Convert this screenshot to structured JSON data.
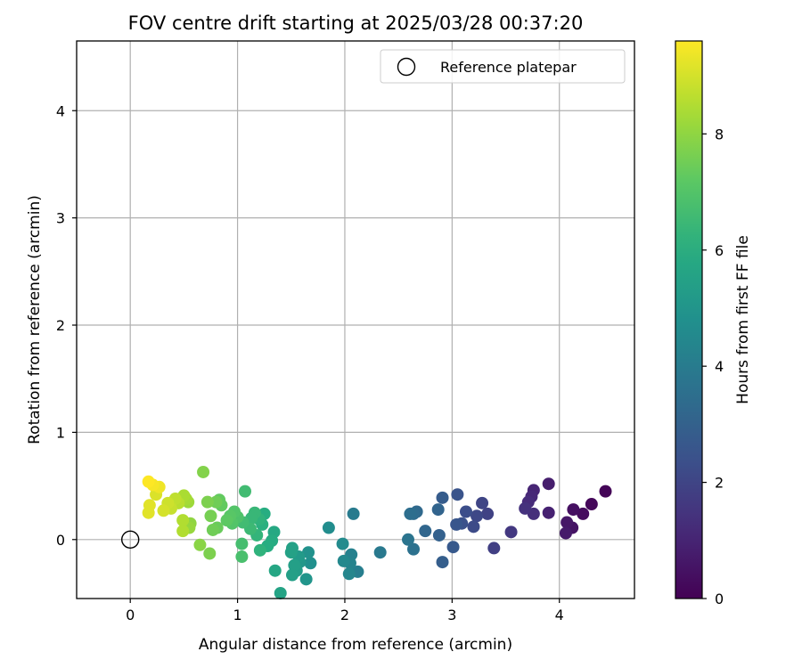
{
  "chart_data": {
    "type": "scatter",
    "title": "FOV centre drift starting at 2025/03/28 00:37:20",
    "xlabel": "Angular distance from reference (arcmin)",
    "ylabel": "Rotation from reference (arcmin)",
    "xlim": [
      -0.5,
      4.7
    ],
    "ylim": [
      -0.55,
      4.65
    ],
    "xticks": [
      0,
      1,
      2,
      3,
      4
    ],
    "yticks": [
      0,
      1,
      2,
      3,
      4
    ],
    "grid": true,
    "legend": {
      "label": "Reference platepar",
      "position": "top-right",
      "marker": "open-circle"
    },
    "reference_point": {
      "x": 0,
      "y": 0
    },
    "colorbar": {
      "label": "Hours from first FF file",
      "colormap": "viridis",
      "range": [
        0,
        9.6
      ],
      "ticks": [
        0,
        2,
        4,
        6,
        8
      ]
    },
    "points": [
      {
        "x": 4.43,
        "y": 0.45,
        "c": 0.1
      },
      {
        "x": 4.3,
        "y": 0.33,
        "c": 0.2
      },
      {
        "x": 4.22,
        "y": 0.24,
        "c": 0.3
      },
      {
        "x": 4.13,
        "y": 0.28,
        "c": 0.4
      },
      {
        "x": 4.12,
        "y": 0.11,
        "c": 0.5
      },
      {
        "x": 4.07,
        "y": 0.16,
        "c": 0.6
      },
      {
        "x": 4.06,
        "y": 0.06,
        "c": 0.7
      },
      {
        "x": 3.9,
        "y": 0.52,
        "c": 0.8
      },
      {
        "x": 3.9,
        "y": 0.25,
        "c": 0.9
      },
      {
        "x": 3.76,
        "y": 0.46,
        "c": 1.0
      },
      {
        "x": 3.74,
        "y": 0.4,
        "c": 1.1
      },
      {
        "x": 3.71,
        "y": 0.35,
        "c": 1.2
      },
      {
        "x": 3.76,
        "y": 0.24,
        "c": 1.3
      },
      {
        "x": 3.68,
        "y": 0.29,
        "c": 1.4
      },
      {
        "x": 3.55,
        "y": 0.07,
        "c": 1.6
      },
      {
        "x": 3.39,
        "y": -0.08,
        "c": 1.8
      },
      {
        "x": 3.33,
        "y": 0.24,
        "c": 1.9
      },
      {
        "x": 3.28,
        "y": 0.34,
        "c": 2.0
      },
      {
        "x": 3.23,
        "y": 0.22,
        "c": 2.1
      },
      {
        "x": 3.2,
        "y": 0.12,
        "c": 2.2
      },
      {
        "x": 3.13,
        "y": 0.26,
        "c": 2.3
      },
      {
        "x": 3.09,
        "y": 0.15,
        "c": 2.4
      },
      {
        "x": 3.05,
        "y": 0.42,
        "c": 2.5
      },
      {
        "x": 3.04,
        "y": 0.14,
        "c": 2.6
      },
      {
        "x": 3.01,
        "y": -0.07,
        "c": 2.7
      },
      {
        "x": 2.91,
        "y": 0.39,
        "c": 2.8
      },
      {
        "x": 2.91,
        "y": -0.21,
        "c": 2.9
      },
      {
        "x": 2.88,
        "y": 0.04,
        "c": 3.0
      },
      {
        "x": 2.87,
        "y": 0.28,
        "c": 3.1
      },
      {
        "x": 2.75,
        "y": 0.08,
        "c": 3.2
      },
      {
        "x": 2.67,
        "y": 0.26,
        "c": 3.3
      },
      {
        "x": 2.64,
        "y": 0.24,
        "c": 3.4
      },
      {
        "x": 2.61,
        "y": 0.24,
        "c": 3.5
      },
      {
        "x": 2.64,
        "y": -0.09,
        "c": 3.6
      },
      {
        "x": 2.59,
        "y": 0.0,
        "c": 3.7
      },
      {
        "x": 2.33,
        "y": -0.12,
        "c": 3.9
      },
      {
        "x": 2.08,
        "y": 0.24,
        "c": 4.0
      },
      {
        "x": 2.12,
        "y": -0.3,
        "c": 4.1
      },
      {
        "x": 2.06,
        "y": -0.14,
        "c": 4.2
      },
      {
        "x": 2.05,
        "y": -0.22,
        "c": 4.3
      },
      {
        "x": 2.04,
        "y": -0.32,
        "c": 4.4
      },
      {
        "x": 1.99,
        "y": -0.2,
        "c": 4.5
      },
      {
        "x": 1.98,
        "y": -0.04,
        "c": 4.6
      },
      {
        "x": 1.85,
        "y": 0.11,
        "c": 4.7
      },
      {
        "x": 1.68,
        "y": -0.22,
        "c": 4.8
      },
      {
        "x": 1.66,
        "y": -0.12,
        "c": 4.9
      },
      {
        "x": 1.64,
        "y": -0.37,
        "c": 5.0
      },
      {
        "x": 1.58,
        "y": -0.21,
        "c": 5.1
      },
      {
        "x": 1.57,
        "y": -0.16,
        "c": 5.2
      },
      {
        "x": 1.55,
        "y": -0.29,
        "c": 5.3
      },
      {
        "x": 1.53,
        "y": -0.24,
        "c": 5.4
      },
      {
        "x": 1.51,
        "y": -0.33,
        "c": 5.4
      },
      {
        "x": 1.51,
        "y": -0.08,
        "c": 5.5
      },
      {
        "x": 1.5,
        "y": -0.12,
        "c": 5.5
      },
      {
        "x": 1.4,
        "y": -0.5,
        "c": 5.6
      },
      {
        "x": 1.35,
        "y": -0.29,
        "c": 5.7
      },
      {
        "x": 1.34,
        "y": 0.07,
        "c": 5.8
      },
      {
        "x": 1.32,
        "y": -0.01,
        "c": 5.9
      },
      {
        "x": 1.28,
        "y": -0.06,
        "c": 6.0
      },
      {
        "x": 1.25,
        "y": 0.24,
        "c": 6.0
      },
      {
        "x": 1.23,
        "y": 0.14,
        "c": 6.1
      },
      {
        "x": 1.21,
        "y": -0.1,
        "c": 6.2
      },
      {
        "x": 1.2,
        "y": 0.19,
        "c": 6.2
      },
      {
        "x": 1.18,
        "y": 0.04,
        "c": 6.3
      },
      {
        "x": 1.16,
        "y": 0.25,
        "c": 6.4
      },
      {
        "x": 1.13,
        "y": 0.2,
        "c": 6.4
      },
      {
        "x": 1.12,
        "y": 0.1,
        "c": 6.5
      },
      {
        "x": 1.07,
        "y": 0.45,
        "c": 6.6
      },
      {
        "x": 1.05,
        "y": 0.16,
        "c": 6.6
      },
      {
        "x": 1.04,
        "y": -0.04,
        "c": 6.7
      },
      {
        "x": 1.04,
        "y": -0.16,
        "c": 6.8
      },
      {
        "x": 1.0,
        "y": 0.21,
        "c": 6.9
      },
      {
        "x": 0.97,
        "y": 0.26,
        "c": 7.0
      },
      {
        "x": 0.95,
        "y": 0.15,
        "c": 7.0
      },
      {
        "x": 0.93,
        "y": 0.22,
        "c": 7.1
      },
      {
        "x": 0.9,
        "y": 0.18,
        "c": 7.2
      },
      {
        "x": 0.85,
        "y": 0.32,
        "c": 7.3
      },
      {
        "x": 0.83,
        "y": 0.37,
        "c": 7.3
      },
      {
        "x": 0.81,
        "y": 0.11,
        "c": 7.4
      },
      {
        "x": 0.8,
        "y": 0.35,
        "c": 7.5
      },
      {
        "x": 0.77,
        "y": 0.09,
        "c": 7.5
      },
      {
        "x": 0.75,
        "y": 0.22,
        "c": 7.6
      },
      {
        "x": 0.74,
        "y": -0.13,
        "c": 7.7
      },
      {
        "x": 0.72,
        "y": 0.35,
        "c": 7.7
      },
      {
        "x": 0.68,
        "y": 0.63,
        "c": 7.8
      },
      {
        "x": 0.65,
        "y": -0.05,
        "c": 7.9
      },
      {
        "x": 0.56,
        "y": 0.15,
        "c": 8.0
      },
      {
        "x": 0.55,
        "y": 0.11,
        "c": 8.1
      },
      {
        "x": 0.54,
        "y": 0.35,
        "c": 8.2
      },
      {
        "x": 0.52,
        "y": 0.38,
        "c": 8.3
      },
      {
        "x": 0.5,
        "y": 0.41,
        "c": 8.4
      },
      {
        "x": 0.49,
        "y": 0.18,
        "c": 8.5
      },
      {
        "x": 0.49,
        "y": 0.08,
        "c": 8.5
      },
      {
        "x": 0.45,
        "y": 0.34,
        "c": 8.6
      },
      {
        "x": 0.42,
        "y": 0.38,
        "c": 8.7
      },
      {
        "x": 0.38,
        "y": 0.29,
        "c": 8.8
      },
      {
        "x": 0.35,
        "y": 0.34,
        "c": 8.9
      },
      {
        "x": 0.31,
        "y": 0.27,
        "c": 9.0
      },
      {
        "x": 0.24,
        "y": 0.42,
        "c": 9.1
      },
      {
        "x": 0.18,
        "y": 0.32,
        "c": 9.2
      },
      {
        "x": 0.17,
        "y": 0.25,
        "c": 9.2
      },
      {
        "x": 0.27,
        "y": 0.49,
        "c": 9.4
      },
      {
        "x": 0.21,
        "y": 0.51,
        "c": 9.5
      },
      {
        "x": 0.17,
        "y": 0.54,
        "c": 9.6
      }
    ]
  }
}
